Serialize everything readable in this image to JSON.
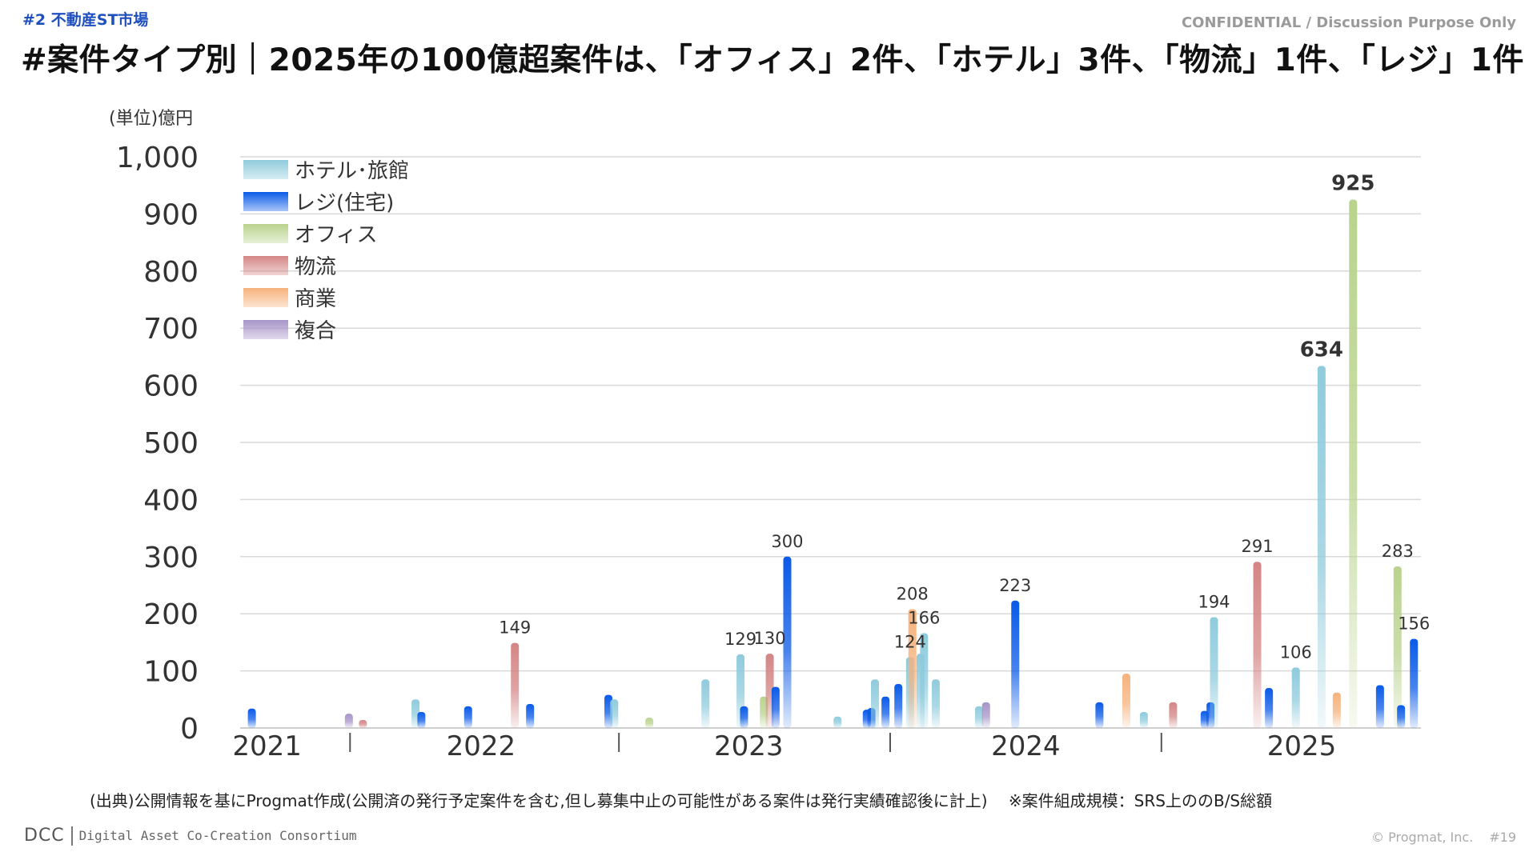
{
  "header": {
    "section_tag": "#2 不動産ST市場",
    "confidential": "CONFIDENTIAL / Discussion Purpose Only",
    "title": "#案件タイプ別｜2025年の100億超案件は、「オフィス」2件、「ホテル」3件、「物流」1件、「レジ」1件"
  },
  "colors": {
    "hotel": "#8fcbdc",
    "resi": "#0a5ae8",
    "office": "#b9d38d",
    "logistics": "#d48585",
    "commercial": "#f6b27c",
    "mixed": "#a794c8",
    "grid": "#d9d9d9"
  },
  "chart_data": {
    "type": "bar",
    "unit_label": "(単位)億円",
    "ylim": [
      0,
      1000
    ],
    "yticks": [
      "0",
      "100",
      "200",
      "300",
      "400",
      "500",
      "600",
      "700",
      "800",
      "900",
      "1,000"
    ],
    "grid": true,
    "legend_position": "top-left",
    "legend": [
      {
        "key": "hotel",
        "label": "ホテル･旅館"
      },
      {
        "key": "resi",
        "label": "レジ(住宅)"
      },
      {
        "key": "office",
        "label": "オフィス"
      },
      {
        "key": "logistics",
        "label": "物流"
      },
      {
        "key": "commercial",
        "label": "商業"
      },
      {
        "key": "mixed",
        "label": "複合"
      }
    ],
    "year_labels": [
      "2021",
      "2022",
      "2023",
      "2024",
      "2025"
    ],
    "bars": [
      {
        "pos": 1.0,
        "type": "resi",
        "value": 34
      },
      {
        "pos": 9.3,
        "type": "mixed",
        "value": 25
      },
      {
        "pos": 10.5,
        "type": "logistics",
        "value": 14
      },
      {
        "pos": 15.0,
        "type": "hotel",
        "value": 50
      },
      {
        "pos": 15.5,
        "type": "resi",
        "value": 28
      },
      {
        "pos": 19.5,
        "type": "resi",
        "value": 38
      },
      {
        "pos": 23.5,
        "type": "logistics",
        "value": 149,
        "label": "149"
      },
      {
        "pos": 24.8,
        "type": "resi",
        "value": 42
      },
      {
        "pos": 31.5,
        "type": "resi",
        "value": 58
      },
      {
        "pos": 32.0,
        "type": "hotel",
        "value": 50
      },
      {
        "pos": 35.0,
        "type": "office",
        "value": 18
      },
      {
        "pos": 39.8,
        "type": "hotel",
        "value": 85
      },
      {
        "pos": 42.8,
        "type": "hotel",
        "value": 129,
        "label": "129"
      },
      {
        "pos": 43.1,
        "type": "resi",
        "value": 38
      },
      {
        "pos": 44.8,
        "type": "office",
        "value": 55
      },
      {
        "pos": 45.3,
        "type": "logistics",
        "value": 130,
        "label": "130"
      },
      {
        "pos": 45.8,
        "type": "resi",
        "value": 72
      },
      {
        "pos": 46.8,
        "type": "resi",
        "value": 300,
        "label": "300"
      },
      {
        "pos": 51.1,
        "type": "hotel",
        "value": 20
      },
      {
        "pos": 53.6,
        "type": "resi",
        "value": 32
      },
      {
        "pos": 54.0,
        "type": "resi",
        "value": 35
      },
      {
        "pos": 54.3,
        "type": "hotel",
        "value": 85
      },
      {
        "pos": 55.2,
        "type": "resi",
        "value": 55
      },
      {
        "pos": 56.3,
        "type": "resi",
        "value": 77
      },
      {
        "pos": 57.3,
        "type": "hotel",
        "value": 124,
        "label": "124"
      },
      {
        "pos": 57.5,
        "type": "commercial",
        "value": 208,
        "label": "208"
      },
      {
        "pos": 58.2,
        "type": "hotel",
        "value": 130
      },
      {
        "pos": 58.5,
        "type": "hotel",
        "value": 166,
        "label": "166"
      },
      {
        "pos": 59.5,
        "type": "hotel",
        "value": 85
      },
      {
        "pos": 63.2,
        "type": "hotel",
        "value": 38
      },
      {
        "pos": 63.8,
        "type": "mixed",
        "value": 45
      },
      {
        "pos": 66.3,
        "type": "resi",
        "value": 223,
        "label": "223"
      },
      {
        "pos": 73.5,
        "type": "resi",
        "value": 45
      },
      {
        "pos": 75.8,
        "type": "commercial",
        "value": 95
      },
      {
        "pos": 77.3,
        "type": "hotel",
        "value": 28
      },
      {
        "pos": 79.8,
        "type": "logistics",
        "value": 45
      },
      {
        "pos": 82.5,
        "type": "resi",
        "value": 30
      },
      {
        "pos": 83.0,
        "type": "resi",
        "value": 45
      },
      {
        "pos": 83.3,
        "type": "hotel",
        "value": 194,
        "label": "194"
      },
      {
        "pos": 87.0,
        "type": "logistics",
        "value": 291,
        "label": "291"
      },
      {
        "pos": 88.0,
        "type": "resi",
        "value": 70
      },
      {
        "pos": 90.3,
        "type": "hotel",
        "value": 106,
        "label": "106"
      },
      {
        "pos": 92.5,
        "type": "hotel",
        "value": 634,
        "label": "634",
        "bold": true
      },
      {
        "pos": 93.8,
        "type": "commercial",
        "value": 62
      },
      {
        "pos": 95.2,
        "type": "office",
        "value": 925,
        "label": "925",
        "bold": true
      },
      {
        "pos": 97.5,
        "type": "resi",
        "value": 75
      },
      {
        "pos": 99.0,
        "type": "office",
        "value": 283,
        "label": "283"
      },
      {
        "pos": 99.3,
        "type": "resi",
        "value": 40
      },
      {
        "pos": 100.4,
        "type": "resi",
        "value": 156,
        "label": "156"
      }
    ]
  },
  "footer": {
    "source": "(出典)公開情報を基にProgmat作成(公開済の発行予定案件を含む,但し募集中止の可能性がある案件は発行実績確認後に計上)　 ※案件組成規模：SRS上ののB/S総額",
    "logo": "DCC",
    "org": "Digital Asset Co-Creation Consortium",
    "copyright": "© Progmat, Inc.",
    "page": "#19"
  }
}
